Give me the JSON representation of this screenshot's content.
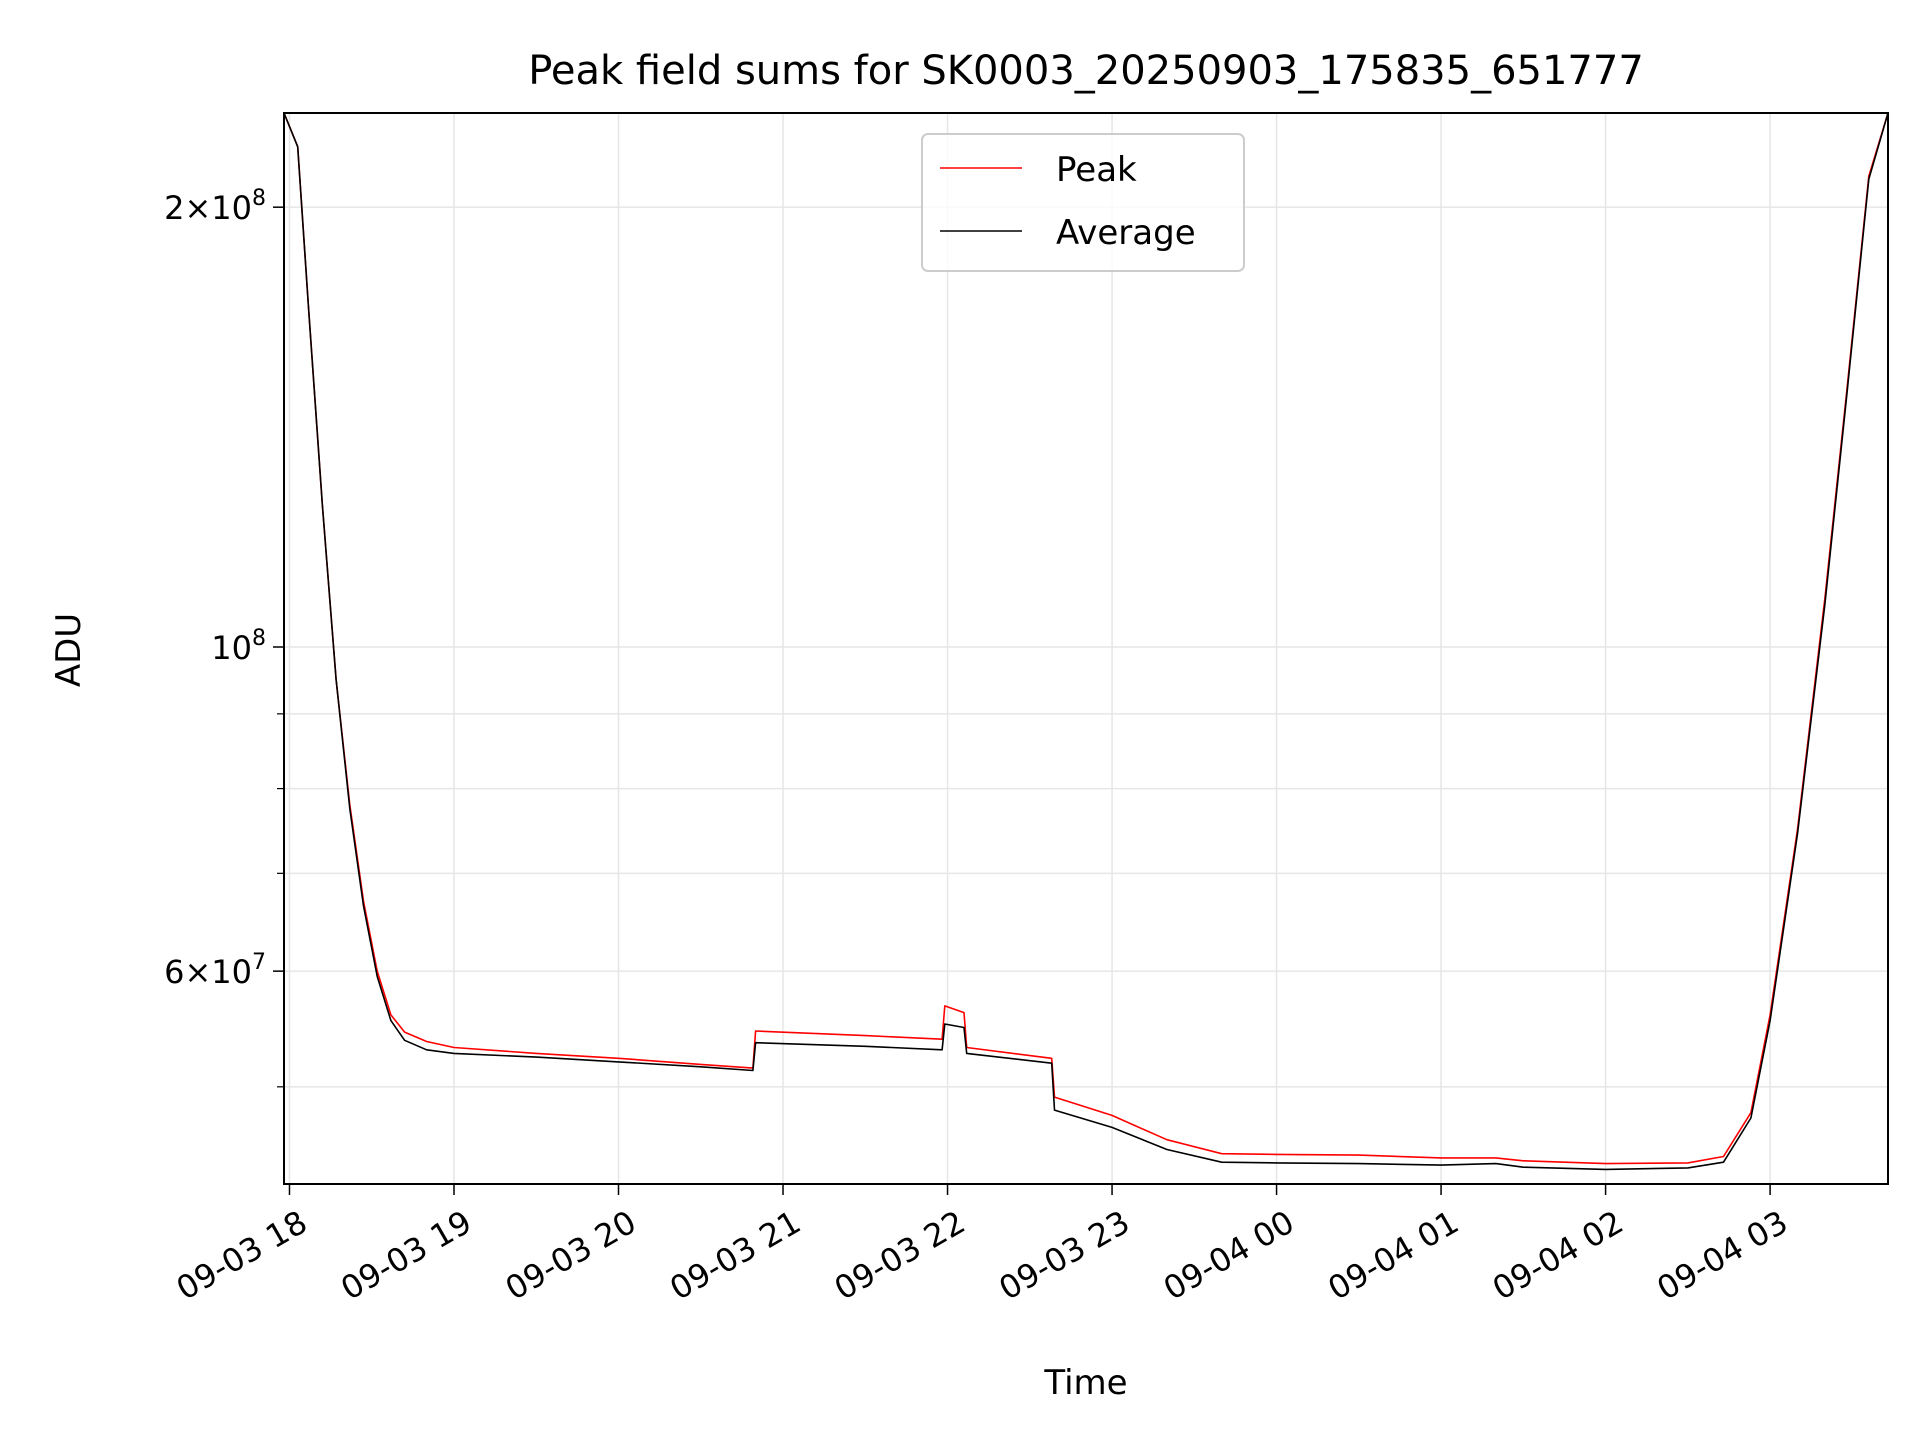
{
  "chart_data": {
    "type": "line",
    "title": "Peak field sums for SK0003_20250903_175835_651777",
    "xlabel": "Time",
    "ylabel": "ADU",
    "yscale": "log",
    "ylim": [
      42900000,
      232000000
    ],
    "xlim": [
      "2025-09-03 17:58",
      "2025-09-04 03:43"
    ],
    "grid": true,
    "legend_position": "upper center",
    "x_ticks": [
      "09-03 18",
      "09-03 19",
      "09-03 20",
      "09-03 21",
      "09-03 22",
      "09-03 23",
      "09-04 00",
      "09-04 01",
      "09-04 02",
      "09-04 03"
    ],
    "y_ticks_major": [
      {
        "value": 200000000,
        "mantissa": "2",
        "exp": "8"
      },
      {
        "value": 100000000,
        "mantissa": "",
        "exp": "8"
      },
      {
        "value": 60000000,
        "mantissa": "6",
        "exp": "7"
      }
    ],
    "y_ticks_minor": [
      50000000,
      70000000,
      80000000,
      90000000
    ],
    "series": [
      {
        "name": "Peak",
        "color": "#ff0000",
        "x": [
          "2025-09-03 17:58",
          "2025-09-03 18:03",
          "2025-09-03 18:07",
          "2025-09-03 18:12",
          "2025-09-03 18:17",
          "2025-09-03 18:22",
          "2025-09-03 18:27",
          "2025-09-03 18:32",
          "2025-09-03 18:37",
          "2025-09-03 18:42",
          "2025-09-03 18:50",
          "2025-09-03 19:00",
          "2025-09-03 19:30",
          "2025-09-03 20:00",
          "2025-09-03 20:30",
          "2025-09-03 20:49",
          "2025-09-03 20:50",
          "2025-09-03 21:30",
          "2025-09-03 21:58",
          "2025-09-03 21:59",
          "2025-09-03 22:06",
          "2025-09-03 22:07",
          "2025-09-03 22:38",
          "2025-09-03 22:39",
          "2025-09-03 23:00",
          "2025-09-03 23:20",
          "2025-09-03 23:40",
          "2025-09-04 00:00",
          "2025-09-04 00:30",
          "2025-09-04 01:00",
          "2025-09-04 01:20",
          "2025-09-04 01:30",
          "2025-09-04 02:00",
          "2025-09-04 02:30",
          "2025-09-04 02:43",
          "2025-09-04 02:53",
          "2025-09-04 03:00",
          "2025-09-04 03:10",
          "2025-09-04 03:20",
          "2025-09-04 03:28",
          "2025-09-04 03:36",
          "2025-09-04 03:43"
        ],
        "y": [
          232000000,
          220000000,
          170000000,
          125000000,
          95000000,
          78000000,
          67000000,
          60000000,
          56000000,
          54500000,
          53700000,
          53200000,
          52700000,
          52300000,
          51800000,
          51500000,
          54600000,
          54200000,
          53900000,
          56800000,
          56200000,
          53200000,
          52300000,
          49200000,
          47800000,
          46000000,
          45000000,
          44950000,
          44900000,
          44700000,
          44700000,
          44500000,
          44300000,
          44350000,
          44800000,
          48000000,
          56000000,
          75000000,
          108000000,
          150000000,
          210000000,
          232000000
        ]
      },
      {
        "name": "Average",
        "color": "#000000",
        "x": [
          "2025-09-03 17:58",
          "2025-09-03 18:03",
          "2025-09-03 18:07",
          "2025-09-03 18:12",
          "2025-09-03 18:17",
          "2025-09-03 18:22",
          "2025-09-03 18:27",
          "2025-09-03 18:32",
          "2025-09-03 18:37",
          "2025-09-03 18:42",
          "2025-09-03 18:50",
          "2025-09-03 19:00",
          "2025-09-03 19:30",
          "2025-09-03 20:00",
          "2025-09-03 20:30",
          "2025-09-03 20:49",
          "2025-09-03 20:50",
          "2025-09-03 21:30",
          "2025-09-03 21:58",
          "2025-09-03 21:59",
          "2025-09-03 22:06",
          "2025-09-03 22:07",
          "2025-09-03 22:38",
          "2025-09-03 22:39",
          "2025-09-03 23:00",
          "2025-09-03 23:20",
          "2025-09-03 23:40",
          "2025-09-04 00:00",
          "2025-09-04 00:30",
          "2025-09-04 01:00",
          "2025-09-04 01:20",
          "2025-09-04 01:30",
          "2025-09-04 02:00",
          "2025-09-04 02:30",
          "2025-09-04 02:43",
          "2025-09-04 02:53",
          "2025-09-04 03:00",
          "2025-09-04 03:10",
          "2025-09-04 03:20",
          "2025-09-04 03:28",
          "2025-09-04 03:36",
          "2025-09-04 03:43"
        ],
        "y": [
          232000000,
          220000000,
          170000000,
          125000000,
          95000000,
          77500000,
          66500000,
          59500000,
          55500000,
          53800000,
          53000000,
          52700000,
          52400000,
          52000000,
          51600000,
          51300000,
          53600000,
          53300000,
          53000000,
          55200000,
          54900000,
          52700000,
          51900000,
          48200000,
          46900000,
          45300000,
          44400000,
          44350000,
          44300000,
          44200000,
          44300000,
          44050000,
          43900000,
          44000000,
          44400000,
          47600000,
          55500000,
          74500000,
          107000000,
          149000000,
          209000000,
          232000000
        ]
      }
    ]
  }
}
